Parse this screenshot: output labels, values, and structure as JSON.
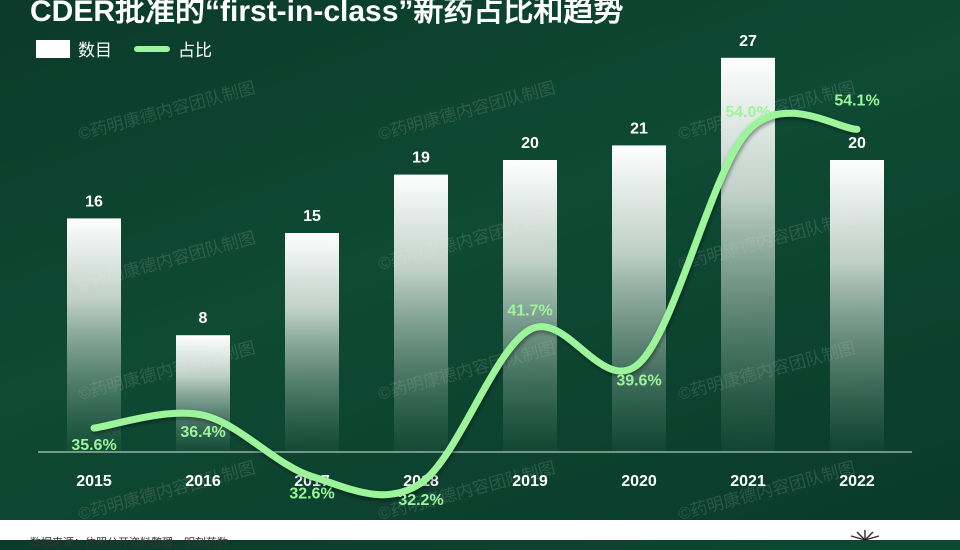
{
  "title": "CDER批准的“first-in-class”新药占比和趋势",
  "legend": {
    "bar_label": "数目",
    "line_label": "占比"
  },
  "watermark": "©药明康德内容团队制图",
  "footer": {
    "source": "数据来源：依照公开资料整理，明刻药数"
  },
  "colors": {
    "line": "#9cf59a",
    "bar_top": "#ffffff",
    "background": "#0e4a34"
  },
  "chart_data": {
    "type": "bar",
    "categories": [
      "2015",
      "2016",
      "2017",
      "2018",
      "2019",
      "2020",
      "2021",
      "2022"
    ],
    "series": [
      {
        "name": "数目",
        "type": "bar",
        "values": [
          16,
          8,
          15,
          19,
          20,
          21,
          27,
          20
        ]
      },
      {
        "name": "占比",
        "type": "line",
        "values": [
          35.6,
          36.4,
          32.6,
          32.2,
          41.7,
          39.6,
          54.0,
          54.1
        ],
        "labels": [
          "35.6%",
          "36.4%",
          "32.6%",
          "32.2%",
          "41.7%",
          "39.6%",
          "54.0%",
          "54.1%"
        ]
      }
    ],
    "grid": false,
    "legend": "top-left"
  }
}
